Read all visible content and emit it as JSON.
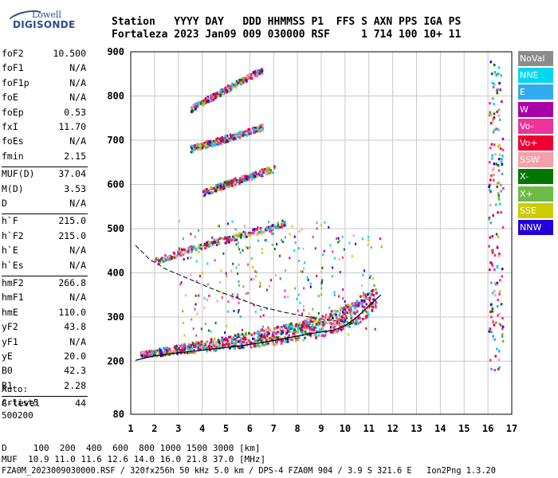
{
  "logo": {
    "line1": "Lowell",
    "line2": "DIGISONDE"
  },
  "header": {
    "line1": "Station   YYYY DAY   DDD HHMMSS P1  FFS S AXN PPS IGA PS",
    "line2": "Fortaleza 2023 Jan09 009 030000 RSF     1 714 100 10+ 11"
  },
  "params": [
    {
      "label": "foF2",
      "value": "10.500"
    },
    {
      "label": "foF1",
      "value": "N/A"
    },
    {
      "label": "foF1p",
      "value": "N/A"
    },
    {
      "label": "foE",
      "value": "N/A"
    },
    {
      "label": "foEp",
      "value": "0.53"
    },
    {
      "label": "fxI",
      "value": "11.70"
    },
    {
      "label": "foEs",
      "value": "N/A"
    },
    {
      "label": "fmin",
      "value": "2.15"
    },
    {
      "label": "MUF(D)",
      "value": "37.04"
    },
    {
      "label": "M(D)",
      "value": "3.53"
    },
    {
      "label": "D",
      "value": "N/A"
    },
    {
      "label": "h`F",
      "value": "215.0"
    },
    {
      "label": "h`F2",
      "value": "215.0"
    },
    {
      "label": "h`E",
      "value": "N/A"
    },
    {
      "label": "h`Es",
      "value": "N/A"
    },
    {
      "label": "hmF2",
      "value": "266.8"
    },
    {
      "label": "hmF1",
      "value": "N/A"
    },
    {
      "label": "hmE",
      "value": "110.0"
    },
    {
      "label": "yF2",
      "value": "43.8"
    },
    {
      "label": "yF1",
      "value": "N/A"
    },
    {
      "label": "yE",
      "value": "20.0"
    },
    {
      "label": "B0",
      "value": "42.3"
    },
    {
      "label": "B1",
      "value": "2.28"
    },
    {
      "label": "C-level",
      "value": "44"
    }
  ],
  "auto": {
    "label": "Auto:",
    "artist": "Artist5",
    "code": "500200"
  },
  "footer": {
    "d_line": "D     100  200  400  600  800 1000 1500 3000 [km]",
    "muf_line": "MUF  10.9 11.0 11.6 12.6 14.0 16.0 21.8 37.0 [MHz]",
    "file_line": "FZA0M_2023009030000.RSF / 320fx256h 50 kHz 5.0 km / DPS-4 FZA0M 904 / 3.9 S 321.6 E   Ion2Png 1.3.20"
  },
  "legend": [
    {
      "label": "NoVal",
      "color": "#8c8c8c"
    },
    {
      "label": "NNE",
      "color": "#00d8f0"
    },
    {
      "label": "E",
      "color": "#33aaee"
    },
    {
      "label": "W",
      "color": "#aa00aa"
    },
    {
      "label": "Vo-",
      "color": "#ee3399"
    },
    {
      "label": "Vo+",
      "color": "#ee0033"
    },
    {
      "label": "SSW",
      "color": "#f4a0a8"
    },
    {
      "label": "X-",
      "color": "#007700"
    },
    {
      "label": "X+",
      "color": "#6dbb44"
    },
    {
      "label": "SSE",
      "color": "#cccc00"
    },
    {
      "label": "NNW",
      "color": "#2200dd"
    }
  ],
  "chart_data": {
    "type": "scatter",
    "xlim": [
      1,
      17
    ],
    "ylim": [
      80,
      900
    ],
    "xticks": [
      1,
      2,
      3,
      4,
      5,
      6,
      7,
      8,
      9,
      10,
      11,
      12,
      13,
      14,
      15,
      16,
      17
    ],
    "yticks": [
      80,
      200,
      300,
      400,
      500,
      600,
      700,
      800,
      900
    ],
    "grid": true,
    "legend_position": "right",
    "profile_dashed": {
      "x": [
        1.2,
        1.8,
        2.5,
        3.5,
        4.5,
        5.5,
        6.5,
        7.5,
        8.5,
        9.5,
        10.5
      ],
      "y": [
        462,
        430,
        408,
        385,
        362,
        342,
        323,
        310,
        300,
        292,
        285
      ]
    },
    "profile_solid": {
      "x": [
        1.2,
        1.8,
        2.5,
        3.5,
        4.5,
        5.5,
        6.5,
        7.5,
        8.5,
        9.5,
        10.0,
        10.5,
        11.5
      ],
      "y": [
        202,
        210,
        216,
        222,
        228,
        234,
        242,
        252,
        262,
        270,
        280,
        300,
        350
      ]
    },
    "traces": [
      {
        "name": "F-trace",
        "x": [
          1.4,
          2.0,
          3.0,
          4.0,
          5.0,
          6.0,
          7.0,
          8.0,
          9.0,
          9.5,
          10.0,
          10.5,
          11.0,
          11.3
        ],
        "y": [
          215,
          218,
          226,
          232,
          238,
          245,
          252,
          262,
          272,
          282,
          292,
          305,
          322,
          345
        ]
      },
      {
        "name": "2F-trace",
        "x": [
          2.0,
          3.0,
          4.0,
          5.0,
          6.0,
          7.0,
          7.5
        ],
        "y": [
          425,
          445,
          462,
          475,
          490,
          503,
          515
        ]
      },
      {
        "name": "3F-trace",
        "x": [
          4.0,
          5.0,
          6.0,
          7.0
        ],
        "y": [
          580,
          600,
          618,
          635
        ]
      },
      {
        "name": "4F-trace",
        "x": [
          3.5,
          4.5,
          5.5,
          6.5
        ],
        "y": [
          680,
          695,
          712,
          728
        ]
      },
      {
        "name": "5F-trace",
        "x": [
          3.5,
          4.5,
          5.5,
          6.5
        ],
        "y": [
          770,
          800,
          830,
          858
        ]
      },
      {
        "name": "vertical-band-16",
        "x": [
          16.1,
          16.2,
          16.2,
          16.3,
          16.3
        ],
        "y": [
          180,
          300,
          450,
          600,
          800
        ]
      }
    ]
  }
}
